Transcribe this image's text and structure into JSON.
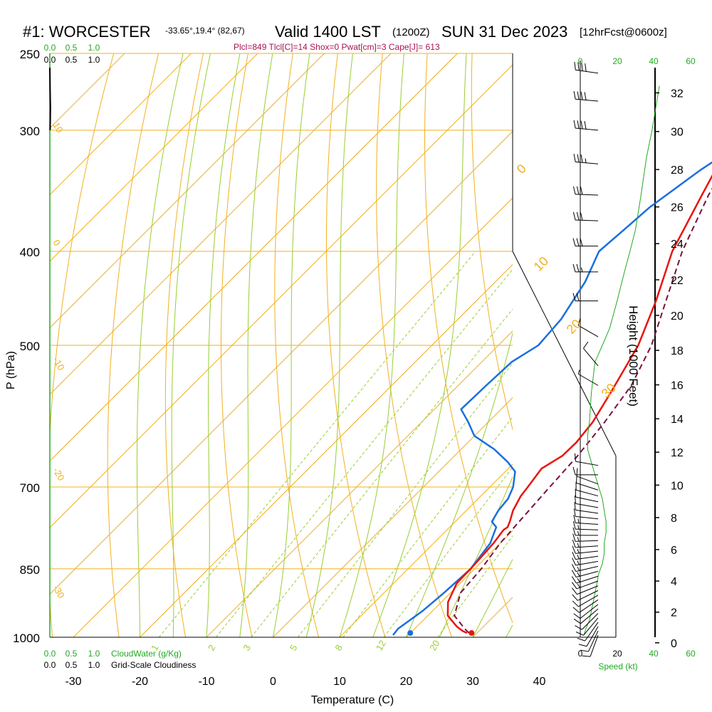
{
  "header": {
    "station": "#1: WORCESTER",
    "coords": "-33.65°,19.4° (82,67)",
    "valid": "Valid 1400 LST",
    "utc": "(1200Z)",
    "date": "SUN 31 Dec 2023",
    "forecast": "[12hrFcst@0600z]"
  },
  "indices": "Plcl=849 Tlcl[C]=14 Shox=0 Pwat[cm]=3 Cape[J]= 613",
  "colors": {
    "temperature": "#e8150f",
    "dewpoint": "#1a6fe0",
    "parcel": "#7a1040",
    "isotherm": "#f2b01e",
    "dry_adiabat": "#f2b01e",
    "moist_adiabat": "#9acd32",
    "mixing_ratio": "#9acd32",
    "green_text": "#22aa22",
    "index_text": "#aa1155"
  },
  "chart_data": {
    "type": "line",
    "xlabel": "Temperature (C)",
    "ylabel": "P (hPa)",
    "right_label": "Height (1000 Feet)",
    "x_ticks": [
      -30,
      -20,
      -10,
      0,
      10,
      20,
      30,
      40
    ],
    "xlim": [
      -35,
      49
    ],
    "pressure_ticks": [
      250,
      300,
      400,
      500,
      700,
      850,
      1000
    ],
    "plim": [
      1000,
      250
    ],
    "height_ticks": [
      0,
      2,
      4,
      6,
      8,
      10,
      12,
      14,
      16,
      18,
      20,
      22,
      24,
      26,
      28,
      30,
      32
    ],
    "isotherm_labels": [
      "-10",
      "0",
      "10",
      "20",
      "30"
    ],
    "isotherm_label_values": [
      -10,
      0,
      10,
      20,
      30
    ],
    "mixing_ratio_labels": [
      "1",
      "2",
      "3",
      "5",
      "8",
      "12",
      "20"
    ],
    "mixing_ratio_values": [
      1,
      2,
      3,
      5,
      8,
      12,
      20
    ],
    "left_side_labels": [
      "10",
      "0",
      "-10",
      "-20",
      "-30"
    ],
    "cloud_top_scale": [
      "0.0",
      "0.5",
      "1.0"
    ],
    "cloud_top_scale_black": [
      "0.0",
      "0.5",
      "1.0"
    ],
    "cloud_bottom_scale": [
      "0.0",
      "0.5",
      "1.0"
    ],
    "cloudwater_label": "CloudWater (g/Kg)",
    "cloudiness_label": "Grid-Scale Cloudiness",
    "speed_ticks": [
      "0",
      "20",
      "40",
      "60"
    ],
    "speed_label": "Speed (kt)",
    "series": [
      {
        "name": "temperature",
        "points": [
          [
            28.5,
            990
          ],
          [
            27.5,
            985
          ],
          [
            26,
            975
          ],
          [
            23,
            950
          ],
          [
            21,
            920
          ],
          [
            19.5,
            880
          ],
          [
            19.4,
            850
          ],
          [
            19,
            800
          ],
          [
            18.5,
            775
          ],
          [
            18.7,
            770
          ],
          [
            18.2,
            760
          ],
          [
            17,
            740
          ],
          [
            16,
            715
          ],
          [
            15.7,
            700
          ],
          [
            15,
            670
          ],
          [
            16.2,
            650
          ],
          [
            16.3,
            630
          ],
          [
            15.7,
            600
          ],
          [
            14,
            560
          ],
          [
            11,
            500
          ],
          [
            7,
            450
          ],
          [
            2,
            400
          ],
          [
            -2,
            350
          ],
          [
            -6.5,
            300
          ],
          [
            -9.5,
            265
          ]
        ]
      },
      {
        "name": "dewpoint",
        "points": [
          [
            17.7,
            995
          ],
          [
            17.5,
            980
          ],
          [
            18,
            960
          ],
          [
            18.5,
            940
          ],
          [
            19,
            900
          ],
          [
            19.4,
            850
          ],
          [
            18.5,
            800
          ],
          [
            17.5,
            780
          ],
          [
            17,
            770
          ],
          [
            15.5,
            760
          ],
          [
            14.8,
            740
          ],
          [
            14.5,
            720
          ],
          [
            13.5,
            700
          ],
          [
            11.5,
            675
          ],
          [
            9,
            660
          ],
          [
            5,
            640
          ],
          [
            0,
            620
          ],
          [
            -3,
            600
          ],
          [
            -6,
            582
          ],
          [
            -5.8,
            550
          ],
          [
            -5.5,
            520
          ],
          [
            -4,
            500
          ],
          [
            -4.5,
            470
          ],
          [
            -6.5,
            430
          ],
          [
            -9,
            400
          ],
          [
            -8.5,
            380
          ],
          [
            -8,
            360
          ],
          [
            -6,
            330
          ],
          [
            -5,
            320
          ],
          [
            -6.5,
            300
          ],
          [
            -7,
            280
          ],
          [
            -8.5,
            265
          ]
        ]
      },
      {
        "name": "parcel",
        "points": [
          [
            28.8,
            990
          ],
          [
            27.5,
            980
          ],
          [
            24,
            950
          ],
          [
            21.5,
            900
          ],
          [
            21,
            850
          ],
          [
            20,
            800
          ],
          [
            19.5,
            750
          ],
          [
            19,
            700
          ],
          [
            18.5,
            650
          ],
          [
            17.5,
            600
          ],
          [
            16,
            550
          ],
          [
            13,
            500
          ],
          [
            8.5,
            450
          ],
          [
            3.5,
            400
          ],
          [
            -1,
            350
          ],
          [
            -5,
            300
          ],
          [
            -8.8,
            265
          ]
        ]
      }
    ],
    "surface_temp": 29.5,
    "surface_dew": 20.3,
    "surface_pressure": 995,
    "cloudwater_profile": [
      [
        0,
        250
      ],
      [
        0.01,
        265
      ],
      [
        0.02,
        275
      ],
      [
        0.01,
        290
      ]
    ],
    "wind_speed_kt": [
      [
        2,
        995
      ],
      [
        3,
        980
      ],
      [
        5,
        960
      ],
      [
        6,
        940
      ],
      [
        7,
        920
      ],
      [
        8,
        900
      ],
      [
        9,
        880
      ],
      [
        10,
        860
      ],
      [
        12,
        840
      ],
      [
        13,
        820
      ],
      [
        13,
        800
      ],
      [
        14,
        780
      ],
      [
        14,
        760
      ],
      [
        13,
        740
      ],
      [
        12,
        720
      ],
      [
        10,
        700
      ],
      [
        8,
        680
      ],
      [
        6,
        660
      ],
      [
        4,
        640
      ],
      [
        4,
        620
      ],
      [
        5,
        600
      ],
      [
        6,
        560
      ],
      [
        8,
        520
      ],
      [
        12,
        500
      ],
      [
        16,
        480
      ],
      [
        20,
        450
      ],
      [
        24,
        420
      ],
      [
        27,
        400
      ],
      [
        30,
        380
      ],
      [
        33,
        350
      ],
      [
        36,
        320
      ],
      [
        39,
        300
      ],
      [
        43,
        270
      ]
    ],
    "wind_barbs": [
      {
        "p": 995,
        "spd": 8,
        "dir": 200
      },
      {
        "p": 985,
        "spd": 8,
        "dir": 205
      },
      {
        "p": 975,
        "spd": 8,
        "dir": 210
      },
      {
        "p": 965,
        "spd": 9,
        "dir": 215
      },
      {
        "p": 955,
        "spd": 9,
        "dir": 220
      },
      {
        "p": 945,
        "spd": 10,
        "dir": 225
      },
      {
        "p": 935,
        "spd": 10,
        "dir": 230
      },
      {
        "p": 925,
        "spd": 10,
        "dir": 232
      },
      {
        "p": 915,
        "spd": 11,
        "dir": 236
      },
      {
        "p": 905,
        "spd": 11,
        "dir": 240
      },
      {
        "p": 895,
        "spd": 12,
        "dir": 244
      },
      {
        "p": 885,
        "spd": 12,
        "dir": 248
      },
      {
        "p": 875,
        "spd": 13,
        "dir": 250
      },
      {
        "p": 865,
        "spd": 13,
        "dir": 252
      },
      {
        "p": 855,
        "spd": 13,
        "dir": 255
      },
      {
        "p": 845,
        "spd": 14,
        "dir": 257
      },
      {
        "p": 835,
        "spd": 14,
        "dir": 260
      },
      {
        "p": 825,
        "spd": 14,
        "dir": 262
      },
      {
        "p": 815,
        "spd": 14,
        "dir": 264
      },
      {
        "p": 805,
        "spd": 14,
        "dir": 266
      },
      {
        "p": 795,
        "spd": 14,
        "dir": 268
      },
      {
        "p": 785,
        "spd": 13,
        "dir": 270
      },
      {
        "p": 775,
        "spd": 13,
        "dir": 272
      },
      {
        "p": 765,
        "spd": 13,
        "dir": 274
      },
      {
        "p": 755,
        "spd": 12,
        "dir": 276
      },
      {
        "p": 745,
        "spd": 12,
        "dir": 278
      },
      {
        "p": 735,
        "spd": 11,
        "dir": 280
      },
      {
        "p": 725,
        "spd": 10,
        "dir": 282
      },
      {
        "p": 715,
        "spd": 10,
        "dir": 285
      },
      {
        "p": 705,
        "spd": 9,
        "dir": 288
      },
      {
        "p": 695,
        "spd": 9,
        "dir": 290
      },
      {
        "p": 680,
        "spd": 10,
        "dir": 270
      },
      {
        "p": 665,
        "spd": 8,
        "dir": 280
      },
      {
        "p": 550,
        "spd": 6,
        "dir": 300
      },
      {
        "p": 525,
        "spd": 8,
        "dir": 320
      },
      {
        "p": 490,
        "spd": 12,
        "dir": 300
      },
      {
        "p": 450,
        "spd": 22,
        "dir": 270
      },
      {
        "p": 420,
        "spd": 25,
        "dir": 270
      },
      {
        "p": 395,
        "spd": 28,
        "dir": 270
      },
      {
        "p": 372,
        "spd": 30,
        "dir": 272
      },
      {
        "p": 350,
        "spd": 32,
        "dir": 272
      },
      {
        "p": 325,
        "spd": 35,
        "dir": 275
      },
      {
        "p": 300,
        "spd": 38,
        "dir": 275
      },
      {
        "p": 280,
        "spd": 40,
        "dir": 275
      },
      {
        "p": 262,
        "spd": 42,
        "dir": 278
      }
    ]
  }
}
